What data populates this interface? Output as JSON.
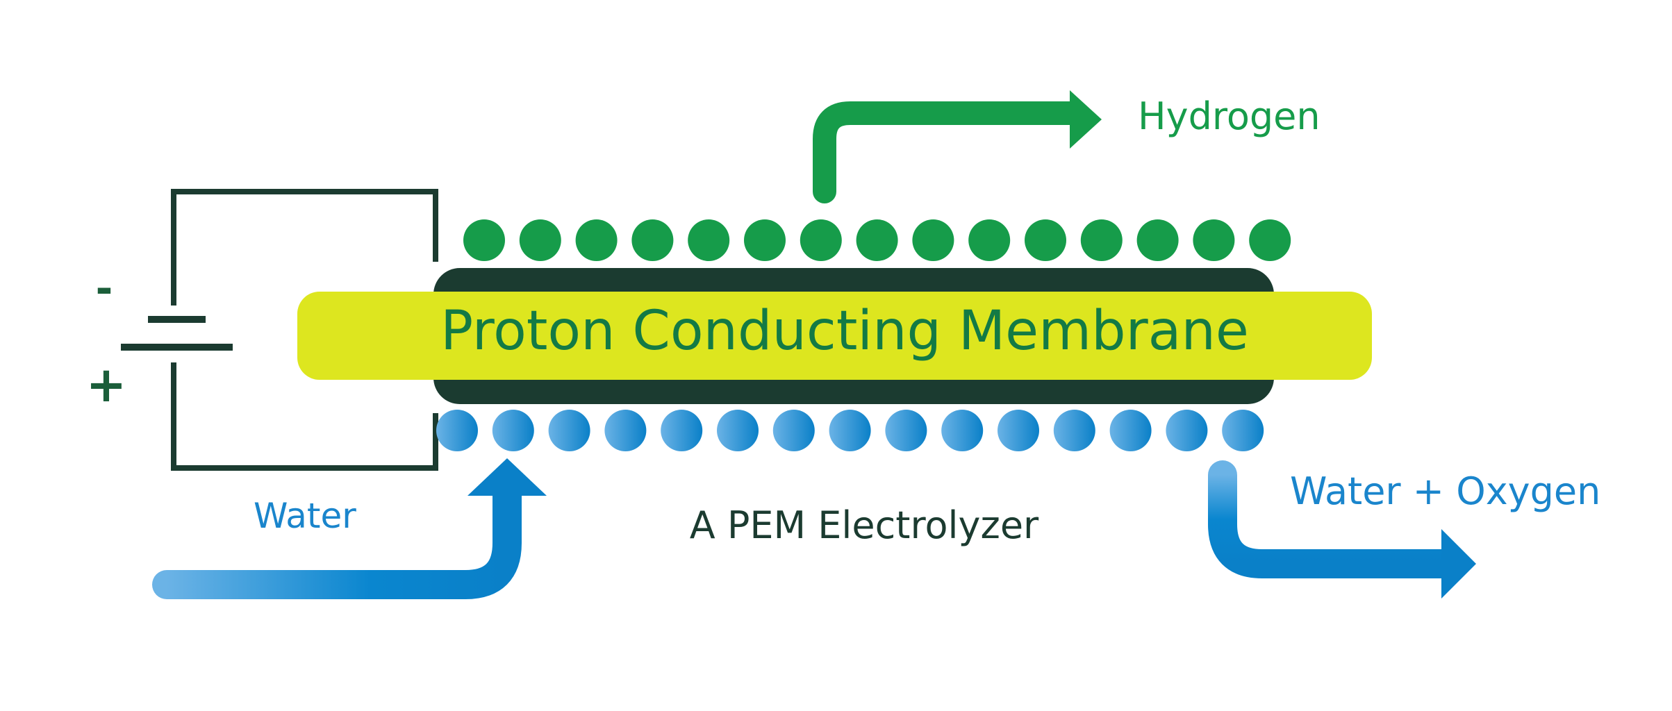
{
  "diagram": {
    "membrane_label": "Proton Conducting Membrane",
    "caption": "A PEM Electrolyzer",
    "labels": {
      "hydrogen": "Hydrogen",
      "water_in": "Water",
      "water_oxygen_out": "Water + Oxygen"
    },
    "battery": {
      "minus": "-",
      "plus": "+"
    },
    "top_particle_count": 15,
    "bottom_particle_count": 15
  },
  "colors": {
    "green": "#169c4a",
    "dark_green": "#1b3b30",
    "membrane_yellow": "#dde61f",
    "membrane_text": "#137a45",
    "blue": "#0a80c8",
    "light_blue": "#5dace3",
    "caption_text": "#1b3b30"
  }
}
